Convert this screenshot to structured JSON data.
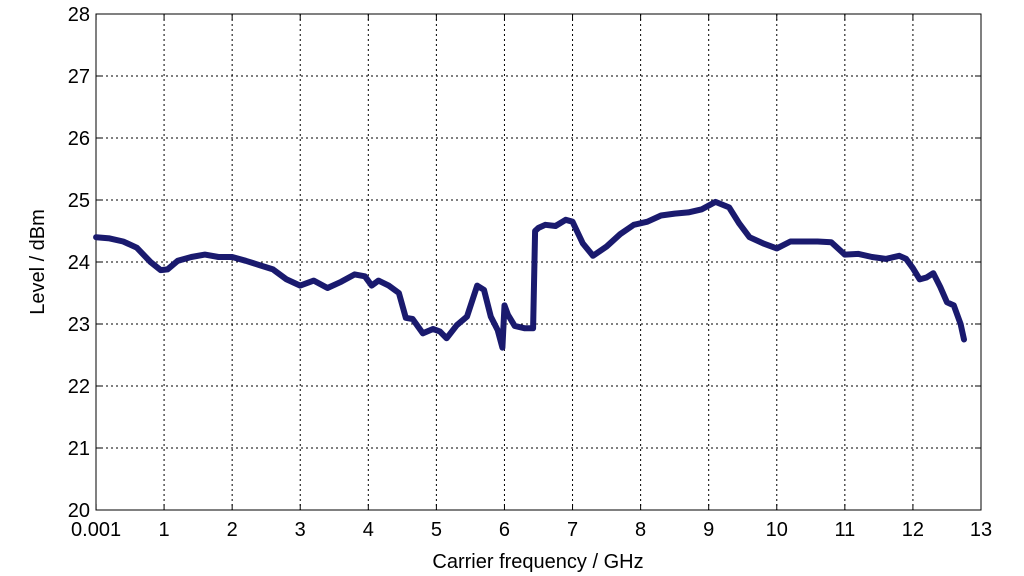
{
  "chart_data": {
    "type": "line",
    "title": "",
    "xlabel": "Carrier frequency / GHz",
    "ylabel": "Level / dBm",
    "xlim": [
      0.001,
      13
    ],
    "ylim": [
      20,
      28
    ],
    "xticks": [
      0.001,
      1,
      2,
      3,
      4,
      5,
      6,
      7,
      8,
      9,
      10,
      11,
      12,
      13
    ],
    "xtick_labels": [
      "0.001",
      "1",
      "2",
      "3",
      "4",
      "5",
      "6",
      "7",
      "8",
      "9",
      "10",
      "11",
      "12",
      "13"
    ],
    "yticks": [
      20,
      21,
      22,
      23,
      24,
      25,
      26,
      27,
      28
    ],
    "ytick_labels": [
      "20",
      "21",
      "22",
      "23",
      "24",
      "25",
      "26",
      "27",
      "28"
    ],
    "grid": true,
    "grid_style": "dotted",
    "line_color": "#1a1a6e",
    "series": [
      {
        "x": [
          0.001,
          0.2,
          0.4,
          0.6,
          0.8,
          0.95,
          1.05,
          1.2,
          1.4,
          1.6,
          1.8,
          2.0,
          2.2,
          2.4,
          2.6,
          2.8,
          3.0,
          3.2,
          3.4,
          3.6,
          3.8,
          3.95,
          4.05,
          4.15,
          4.3,
          4.45,
          4.55,
          4.65,
          4.8,
          4.95,
          5.05,
          5.15,
          5.3,
          5.45,
          5.6,
          5.7,
          5.8,
          5.9,
          5.97,
          6.0,
          6.05,
          6.15,
          6.3,
          6.42,
          6.45,
          6.5,
          6.6,
          6.75,
          6.9,
          7.0,
          7.15,
          7.3,
          7.5,
          7.7,
          7.9,
          8.1,
          8.3,
          8.5,
          8.7,
          8.9,
          9.1,
          9.3,
          9.45,
          9.6,
          9.8,
          10.0,
          10.2,
          10.4,
          10.6,
          10.8,
          11.0,
          11.2,
          11.4,
          11.6,
          11.8,
          11.9,
          12.0,
          12.1,
          12.2,
          12.3,
          12.4,
          12.5,
          12.6,
          12.7,
          12.75
        ],
        "y": [
          24.4,
          24.38,
          24.33,
          24.23,
          24.0,
          23.87,
          23.88,
          24.02,
          24.08,
          24.12,
          24.08,
          24.08,
          24.02,
          23.95,
          23.88,
          23.72,
          23.62,
          23.7,
          23.58,
          23.68,
          23.8,
          23.77,
          23.62,
          23.7,
          23.62,
          23.5,
          23.1,
          23.08,
          22.85,
          22.92,
          22.88,
          22.77,
          22.98,
          23.12,
          23.62,
          23.55,
          23.12,
          22.9,
          22.62,
          23.3,
          23.15,
          22.97,
          22.93,
          22.93,
          24.5,
          24.55,
          24.6,
          24.58,
          24.68,
          24.65,
          24.3,
          24.1,
          24.25,
          24.45,
          24.6,
          24.65,
          24.75,
          24.78,
          24.8,
          24.85,
          24.97,
          24.88,
          24.62,
          24.4,
          24.3,
          24.22,
          24.33,
          24.33,
          24.33,
          24.32,
          24.12,
          24.13,
          24.08,
          24.05,
          24.1,
          24.05,
          23.9,
          23.72,
          23.75,
          23.82,
          23.6,
          23.35,
          23.3,
          23.0,
          22.75
        ]
      }
    ]
  }
}
